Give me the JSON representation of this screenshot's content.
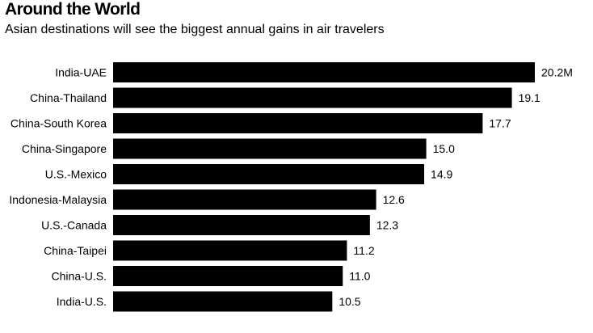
{
  "chart_data": {
    "type": "bar",
    "orientation": "horizontal",
    "title": "Around the World",
    "subtitle": "Asian destinations will see the biggest annual gains in air travelers",
    "xlabel": "",
    "ylabel": "",
    "categories": [
      "India-UAE",
      "China-Thailand",
      "China-South Korea",
      "China-Singapore",
      "U.S.-Mexico",
      "Indonesia-Malaysia",
      "U.S.-Canada",
      "China-Taipei",
      "China-U.S.",
      "India-U.S."
    ],
    "values": [
      20.2,
      19.1,
      17.7,
      15.0,
      14.9,
      12.6,
      12.3,
      11.2,
      11.0,
      10.5
    ],
    "value_labels": [
      "20.2M",
      "19.1",
      "17.7",
      "15.0",
      "14.9",
      "12.6",
      "12.3",
      "11.2",
      "11.0",
      "10.5"
    ],
    "xlim": [
      0,
      20.2
    ],
    "grid": false,
    "legend": "none",
    "bar_color": "#000000"
  }
}
